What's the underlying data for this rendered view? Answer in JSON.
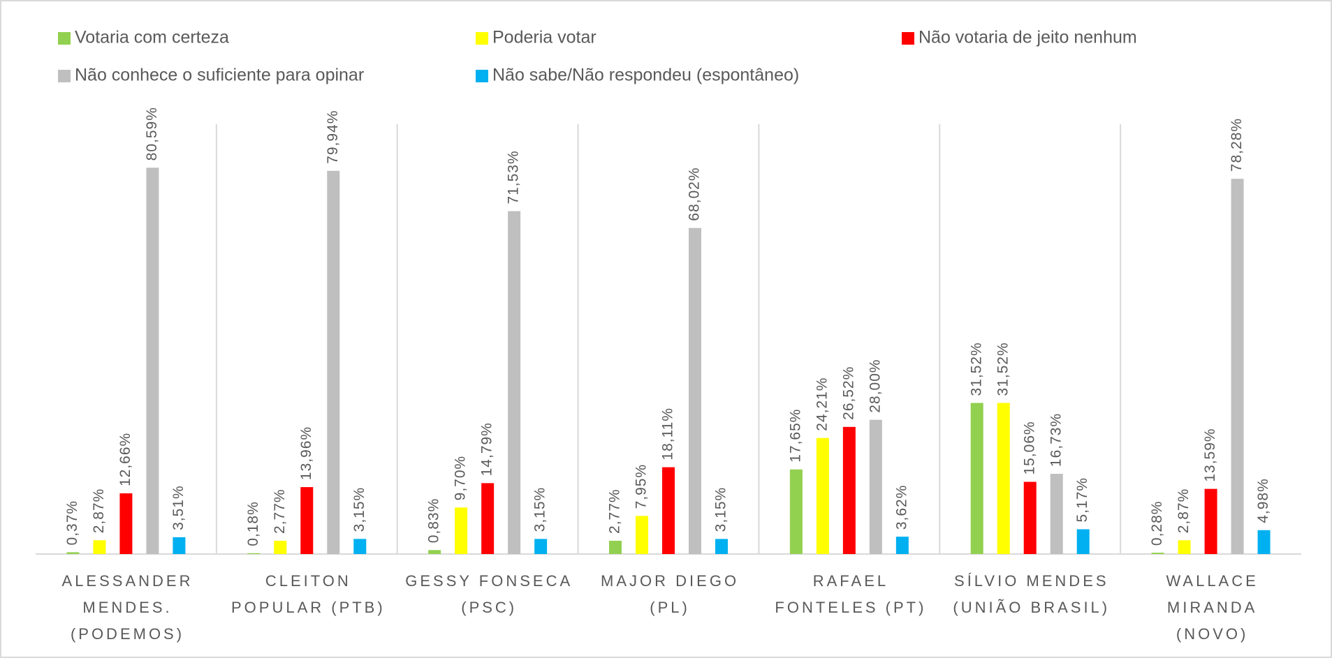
{
  "chart_data": {
    "type": "bar",
    "categories": [
      "ALESSANDER\nMENDES.\n(PODEMOS)",
      "CLEITON\nPOPULAR (PTB)",
      "GESSY FONSECA\n(PSC)",
      "MAJOR DIEGO\n(PL)",
      "RAFAEL\nFONTELES (PT)",
      "SÍLVIO MENDES\n(UNIÃO BRASIL)",
      "WALLACE\nMIRANDA\n(NOVO)"
    ],
    "series": [
      {
        "name": "Votaria com certeza",
        "color": "#92d050",
        "values": [
          0.37,
          0.18,
          0.83,
          2.77,
          17.65,
          31.52,
          0.28
        ],
        "value_labels": [
          "0,37%",
          "0,18%",
          "0,83%",
          "2,77%",
          "17,65%",
          "31,52%",
          "0,28%"
        ]
      },
      {
        "name": "Poderia votar",
        "color": "#ffff00",
        "values": [
          2.87,
          2.77,
          9.7,
          7.95,
          24.21,
          31.52,
          2.87
        ],
        "value_labels": [
          "2,87%",
          "2,77%",
          "9,70%",
          "7,95%",
          "24,21%",
          "31,52%",
          "2,87%"
        ]
      },
      {
        "name": "Não votaria de jeito nenhum",
        "color": "#ff0000",
        "values": [
          12.66,
          13.96,
          14.79,
          18.11,
          26.52,
          15.06,
          13.59
        ],
        "value_labels": [
          "12,66%",
          "13,96%",
          "14,79%",
          "18,11%",
          "26,52%",
          "15,06%",
          "13,59%"
        ]
      },
      {
        "name": "Não conhece o suficiente para opinar",
        "color": "#bfbfbf",
        "values": [
          80.59,
          79.94,
          71.53,
          68.02,
          28.0,
          16.73,
          78.28
        ],
        "value_labels": [
          "80,59%",
          "79,94%",
          "71,53%",
          "68,02%",
          "28,00%",
          "16,73%",
          "78,28%"
        ]
      },
      {
        "name": "Não sabe/Não respondeu (espontâneo)",
        "color": "#00b0f0",
        "values": [
          3.51,
          3.15,
          3.15,
          3.15,
          3.62,
          5.17,
          4.98
        ],
        "value_labels": [
          "3,51%",
          "3,15%",
          "3,15%",
          "3,15%",
          "3,62%",
          "5,17%",
          "4,98%"
        ]
      }
    ]
  }
}
